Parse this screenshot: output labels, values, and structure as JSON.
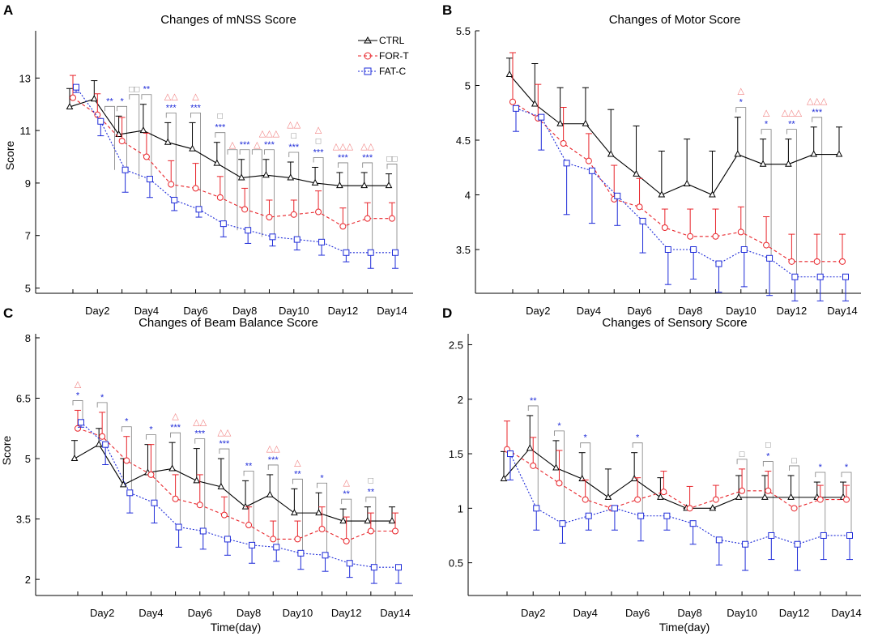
{
  "figure": {
    "x_axis_label": "Time(day)",
    "x_tick_labels": [
      "Day2",
      "Day4",
      "Day6",
      "Day8",
      "Day10",
      "Day12",
      "Day14"
    ],
    "legend": [
      {
        "name": "CTRL",
        "color": "#000000",
        "marker": "triangle",
        "dash": "solid"
      },
      {
        "name": "FOR-T",
        "color": "#e8242a",
        "marker": "circle",
        "dash": "dashed"
      },
      {
        "name": "FAT-C",
        "color": "#1e2bd8",
        "marker": "square",
        "dash": "dotted"
      }
    ],
    "colors": {
      "ctrl": "#000000",
      "fort": "#e8242a",
      "fatc": "#1e2bd8",
      "gray": "#7f7f7f",
      "pink": "#f08080"
    }
  },
  "chart_data": [
    {
      "panel": "A",
      "type": "line",
      "title": "Changes of mNSS Score",
      "ylabel": "Score",
      "xlabel": "",
      "ylim": [
        4.8,
        14.8
      ],
      "yticks": [
        5,
        7,
        9,
        11,
        13
      ],
      "days": [
        1,
        2,
        3,
        4,
        5,
        6,
        7,
        8,
        9,
        10,
        11,
        12,
        13,
        14
      ],
      "series": [
        {
          "name": "CTRL",
          "values": [
            11.9,
            12.2,
            10.85,
            11.0,
            10.55,
            10.3,
            9.75,
            9.2,
            9.3,
            9.2,
            9.0,
            8.9,
            8.9,
            8.9
          ],
          "err": [
            0.7,
            0.7,
            0.7,
            1.0,
            0.75,
            1.0,
            0.8,
            0.7,
            0.6,
            0.6,
            0.6,
            0.5,
            0.5,
            0.45
          ]
        },
        {
          "name": "FOR-T",
          "values": [
            12.25,
            11.6,
            10.6,
            10.0,
            8.95,
            8.8,
            8.45,
            8.0,
            7.7,
            7.8,
            7.9,
            7.35,
            7.65,
            7.65
          ],
          "err": [
            0.85,
            0.8,
            0.9,
            0.9,
            0.9,
            0.95,
            0.8,
            0.8,
            0.65,
            0.55,
            0.8,
            0.7,
            0.6,
            0.6
          ]
        },
        {
          "name": "FAT-C",
          "values": [
            12.65,
            11.35,
            9.5,
            9.15,
            8.35,
            8.0,
            7.45,
            7.2,
            6.95,
            6.85,
            6.75,
            6.35,
            6.35,
            6.35
          ],
          "err": [
            0.2,
            0.55,
            0.85,
            0.7,
            0.4,
            0.3,
            0.5,
            0.5,
            0.35,
            0.4,
            0.5,
            0.35,
            0.6,
            0.6
          ]
        }
      ],
      "annotations": [
        {
          "day": 2.5,
          "label": "**"
        },
        {
          "day": 3,
          "label": "*"
        },
        {
          "day": 3.5,
          "label": "□□"
        },
        {
          "day": 4,
          "label": "**"
        },
        {
          "day": 5,
          "label": "***"
        },
        {
          "day": 5,
          "label": "△△"
        },
        {
          "day": 6,
          "label": "***"
        },
        {
          "day": 6,
          "label": "△"
        },
        {
          "day": 7,
          "label": "***"
        },
        {
          "day": 7,
          "label": "□"
        },
        {
          "day": 7.5,
          "label": "△"
        },
        {
          "day": 8,
          "label": "***"
        },
        {
          "day": 8.5,
          "label": "△"
        },
        {
          "day": 9,
          "label": "***"
        },
        {
          "day": 9,
          "label": "△△△"
        },
        {
          "day": 10,
          "label": "***"
        },
        {
          "day": 10,
          "label": "□"
        },
        {
          "day": 10,
          "label": "△△"
        },
        {
          "day": 11,
          "label": "***"
        },
        {
          "day": 11,
          "label": "□"
        },
        {
          "day": 11,
          "label": "△"
        },
        {
          "day": 12,
          "label": "***"
        },
        {
          "day": 12,
          "label": "△△△"
        },
        {
          "day": 13,
          "label": "***"
        },
        {
          "day": 13,
          "label": "△△"
        },
        {
          "day": 14,
          "label": "□□"
        }
      ]
    },
    {
      "panel": "B",
      "type": "line",
      "title": "Changes of Motor Score",
      "ylabel": "",
      "xlabel": "",
      "ylim": [
        3.1,
        5.5
      ],
      "yticks": [
        3.5,
        4,
        4.5,
        5,
        5.5
      ],
      "days": [
        1,
        2,
        3,
        4,
        5,
        6,
        7,
        8,
        9,
        10,
        11,
        12,
        13,
        14
      ],
      "series": [
        {
          "name": "CTRL",
          "values": [
            5.1,
            4.83,
            4.65,
            4.65,
            4.37,
            4.19,
            4.0,
            4.1,
            4.0,
            4.37,
            4.28,
            4.28,
            4.37,
            4.37
          ],
          "err": [
            0.15,
            0.37,
            0.33,
            0.33,
            0.41,
            0.44,
            0.4,
            0.41,
            0.4,
            0.34,
            0.23,
            0.23,
            0.25,
            0.25
          ]
        },
        {
          "name": "FOR-T",
          "values": [
            4.85,
            4.7,
            4.47,
            4.31,
            3.96,
            3.89,
            3.7,
            3.62,
            3.62,
            3.66,
            3.54,
            3.39,
            3.39,
            3.39
          ],
          "err": [
            0.45,
            0.31,
            0.33,
            0.25,
            0.31,
            0.26,
            0.17,
            0.25,
            0.25,
            0.23,
            0.26,
            0.25,
            0.25,
            0.25
          ]
        },
        {
          "name": "FAT-C",
          "values": [
            4.79,
            4.71,
            4.29,
            4.22,
            3.99,
            3.76,
            3.5,
            3.5,
            3.37,
            3.5,
            3.42,
            3.25,
            3.25,
            3.25
          ],
          "err": [
            0.21,
            0.3,
            0.47,
            0.48,
            0.27,
            0.29,
            0.32,
            0.27,
            0.26,
            0.34,
            0.34,
            0.22,
            0.22,
            0.22
          ]
        }
      ],
      "annotations": [
        {
          "day": 10,
          "label": "*"
        },
        {
          "day": 10,
          "label": "△"
        },
        {
          "day": 11,
          "label": "*"
        },
        {
          "day": 11,
          "label": "△"
        },
        {
          "day": 12,
          "label": "**"
        },
        {
          "day": 12,
          "label": "△△△"
        },
        {
          "day": 13,
          "label": "***"
        },
        {
          "day": 13,
          "label": "△△△"
        }
      ]
    },
    {
      "panel": "C",
      "type": "line",
      "title": "Changes of Beam Balance Score",
      "ylabel": "Score",
      "xlabel": "Time(day)",
      "ylim": [
        1.6,
        8.1
      ],
      "yticks": [
        2,
        3.5,
        5,
        6.5,
        8
      ],
      "days": [
        1,
        2,
        3,
        4,
        5,
        6,
        7,
        8,
        9,
        10,
        11,
        12,
        13,
        14
      ],
      "series": [
        {
          "name": "CTRL",
          "values": [
            5.0,
            5.35,
            4.35,
            4.65,
            4.75,
            4.45,
            4.3,
            3.8,
            4.1,
            3.65,
            3.65,
            3.45,
            3.45,
            3.45
          ],
          "err": [
            0.45,
            0.4,
            0.65,
            0.7,
            0.65,
            0.8,
            0.7,
            0.65,
            0.5,
            0.6,
            0.5,
            0.3,
            0.35,
            0.35
          ]
        },
        {
          "name": "FOR-T",
          "values": [
            5.75,
            5.55,
            4.95,
            4.6,
            4.0,
            3.85,
            3.6,
            3.35,
            3.0,
            3.0,
            3.25,
            2.95,
            3.2,
            3.2
          ],
          "err": [
            0.45,
            0.6,
            0.6,
            0.75,
            0.6,
            0.75,
            0.45,
            0.45,
            0.45,
            0.45,
            0.55,
            0.6,
            0.45,
            0.45
          ]
        },
        {
          "name": "FAT-C",
          "values": [
            5.9,
            5.35,
            4.15,
            3.9,
            3.3,
            3.2,
            3.0,
            2.85,
            2.8,
            2.65,
            2.6,
            2.4,
            2.3,
            2.3
          ],
          "err": [
            0.12,
            0.5,
            0.5,
            0.5,
            0.5,
            0.45,
            0.4,
            0.45,
            0.35,
            0.4,
            0.4,
            0.35,
            0.4,
            0.4
          ]
        }
      ],
      "annotations": [
        {
          "day": 1,
          "label": "*"
        },
        {
          "day": 1,
          "label": "△"
        },
        {
          "day": 2,
          "label": "*"
        },
        {
          "day": 3,
          "label": "*"
        },
        {
          "day": 4,
          "label": "*"
        },
        {
          "day": 5,
          "label": "***"
        },
        {
          "day": 5,
          "label": "△"
        },
        {
          "day": 6,
          "label": "***"
        },
        {
          "day": 6,
          "label": "△△"
        },
        {
          "day": 7,
          "label": "***"
        },
        {
          "day": 7,
          "label": "△△"
        },
        {
          "day": 8,
          "label": "**"
        },
        {
          "day": 9,
          "label": "***"
        },
        {
          "day": 9,
          "label": "△△"
        },
        {
          "day": 10,
          "label": "**"
        },
        {
          "day": 10,
          "label": "△"
        },
        {
          "day": 11,
          "label": "*"
        },
        {
          "day": 12,
          "label": "**"
        },
        {
          "day": 12,
          "label": "△"
        },
        {
          "day": 13,
          "label": "**"
        },
        {
          "day": 13,
          "label": "□"
        }
      ]
    },
    {
      "panel": "D",
      "type": "line",
      "title": "Changes of Sensory Score",
      "ylabel": "",
      "xlabel": "Time(day)",
      "ylim": [
        0.2,
        2.6
      ],
      "yticks": [
        0.5,
        1,
        1.5,
        2,
        2.5
      ],
      "days": [
        1,
        2,
        3,
        4,
        5,
        6,
        7,
        8,
        9,
        10,
        11,
        12,
        13,
        14
      ],
      "series": [
        {
          "name": "CTRL",
          "values": [
            1.27,
            1.55,
            1.37,
            1.27,
            1.1,
            1.27,
            1.1,
            1.0,
            1.0,
            1.1,
            1.1,
            1.1,
            1.1,
            1.1
          ],
          "err": [
            0.25,
            0.3,
            0.25,
            0.24,
            0.26,
            0.24,
            0.18,
            0.0,
            0.0,
            0.2,
            0.2,
            0.2,
            0.14,
            0.14
          ]
        },
        {
          "name": "FOR-T",
          "values": [
            1.54,
            1.39,
            1.23,
            1.08,
            1.0,
            1.08,
            1.15,
            1.0,
            1.08,
            1.16,
            1.16,
            1.0,
            1.08,
            1.08
          ],
          "err": [
            0.26,
            0.26,
            0.3,
            0.18,
            0.0,
            0.2,
            0.19,
            0.2,
            0.13,
            0.2,
            0.18,
            0.0,
            0.13,
            0.13
          ]
        },
        {
          "name": "FAT-C",
          "values": [
            1.5,
            1.0,
            0.86,
            0.93,
            1.0,
            0.93,
            0.93,
            0.86,
            0.71,
            0.67,
            0.75,
            0.67,
            0.75,
            0.75
          ],
          "err": [
            0.24,
            0.2,
            0.18,
            0.13,
            0.2,
            0.23,
            0.13,
            0.19,
            0.23,
            0.24,
            0.22,
            0.24,
            0.22,
            0.22
          ]
        }
      ],
      "annotations": [
        {
          "day": 2,
          "label": "**"
        },
        {
          "day": 3,
          "label": "*"
        },
        {
          "day": 4,
          "label": "*"
        },
        {
          "day": 6,
          "label": "*"
        },
        {
          "day": 10,
          "label": "□"
        },
        {
          "day": 11,
          "label": "*"
        },
        {
          "day": 11,
          "label": "□"
        },
        {
          "day": 12,
          "label": "□"
        },
        {
          "day": 13,
          "label": "*"
        },
        {
          "day": 14,
          "label": "*"
        }
      ]
    }
  ]
}
